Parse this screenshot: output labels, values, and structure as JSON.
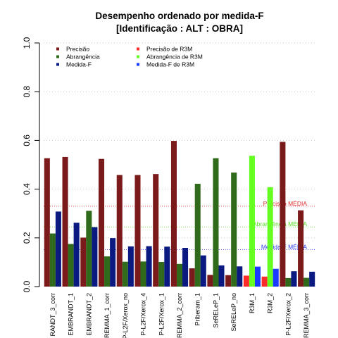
{
  "chart_data": {
    "type": "bar",
    "title": "Desempenho ordenado por medida-F",
    "subtitle": "[Identificação : ALT : OBRA]",
    "ylim": [
      0,
      1
    ],
    "yticks": [
      "0.0",
      "0.2",
      "0.4",
      "0.6",
      "0.8",
      "1.0"
    ],
    "grid": "horizontal dotted",
    "legend_position": "top-left",
    "categories": [
      "RANDT_3_corr",
      "EMBRANDT_1",
      "EMBRANDT_2",
      "REMMA_1_corr",
      "P-L2F/Xerox_no",
      "P-L2F/Xerox_4",
      "P-L2F/Xerox_1",
      "REMMA_2_corr",
      "Priberam_1",
      "SeRELeP_1",
      "SeRELeP_no",
      "R3M_1",
      "R3M_2",
      "P-L2F/Xerox_2",
      "REMMA_3_corr"
    ],
    "highlight_categories": [
      "R3M_1",
      "R3M_2"
    ],
    "series": [
      {
        "name": "Precisão",
        "color": "#7a1a1a",
        "r3m_name": "Precisão  de  R3M",
        "r3m_color": "#ff2a2a",
        "values": [
          0.527,
          0.532,
          0.201,
          0.524,
          0.458,
          0.458,
          0.462,
          0.598,
          0.075,
          0.048,
          0.047,
          0.045,
          0.041,
          0.594,
          0.313
        ]
      },
      {
        "name": "Abrangência",
        "color": "#2f6b1a",
        "r3m_name": "Abrangência  de  R3M",
        "r3m_color": "#66ff22",
        "values": [
          0.218,
          0.175,
          0.311,
          0.124,
          0.102,
          0.103,
          0.101,
          0.093,
          0.422,
          0.527,
          0.468,
          0.537,
          0.408,
          0.035,
          0.036
        ]
      },
      {
        "name": "Medida-F",
        "color": "#0a1a80",
        "r3m_name": "Medida-F  de  R3M",
        "r3m_color": "#1a3aff",
        "values": [
          0.308,
          0.262,
          0.244,
          0.199,
          0.165,
          0.166,
          0.164,
          0.159,
          0.128,
          0.087,
          0.083,
          0.082,
          0.073,
          0.063,
          0.061
        ]
      }
    ],
    "reference_lines": [
      {
        "label": "Precisão MÉDIA",
        "value": 0.33,
        "color": "#e03030"
      },
      {
        "label": "Abrangência MÉDIA",
        "value": 0.245,
        "color": "#55dd22"
      },
      {
        "label": "Medida-F MÉDIA",
        "value": 0.152,
        "color": "#2a3aee"
      }
    ]
  }
}
